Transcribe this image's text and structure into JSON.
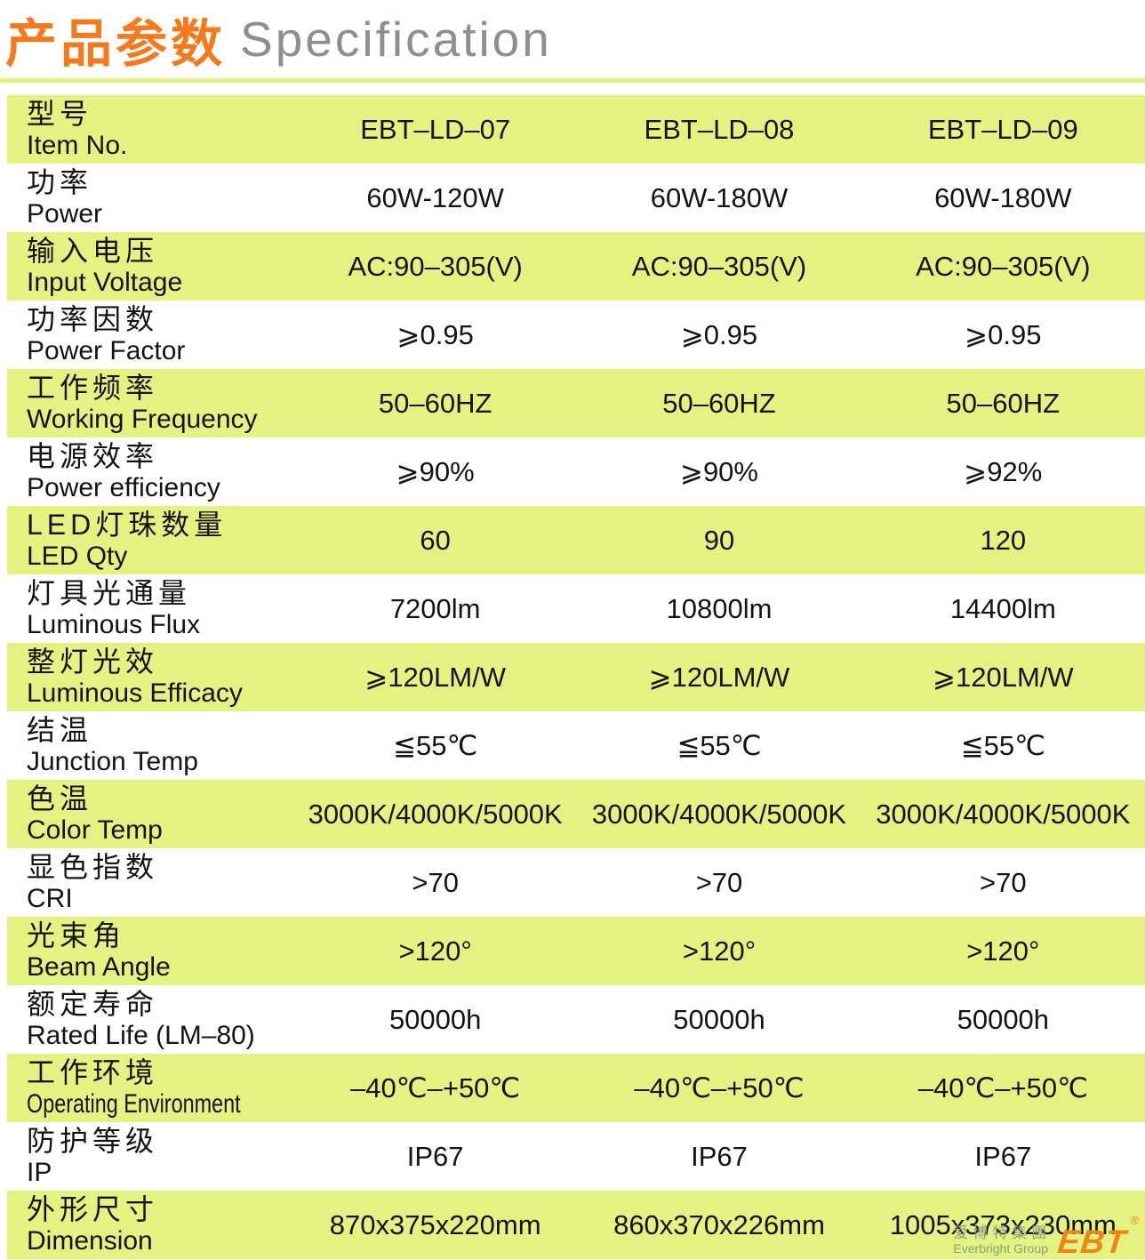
{
  "header": {
    "title_cn": "产品参数",
    "title_en": "Specification"
  },
  "table": {
    "rows": [
      {
        "cn": "型号",
        "en": "Item No.",
        "values": [
          "EBT–LD–07",
          "EBT–LD–08",
          "EBT–LD–09"
        ]
      },
      {
        "cn": "功率",
        "en": "Power",
        "values": [
          "60W-120W",
          "60W-180W",
          "60W-180W"
        ]
      },
      {
        "cn": "输入电压",
        "en": "Input Voltage",
        "values": [
          "AC:90–305(V)",
          "AC:90–305(V)",
          "AC:90–305(V)"
        ]
      },
      {
        "cn": "功率因数",
        "en": "Power Factor",
        "values": [
          "⩾0.95",
          "⩾0.95",
          "⩾0.95"
        ]
      },
      {
        "cn": "工作频率",
        "en": "Working Frequency",
        "values": [
          "50–60HZ",
          "50–60HZ",
          "50–60HZ"
        ]
      },
      {
        "cn": "电源效率",
        "en": "Power efficiency",
        "values": [
          "⩾90%",
          "⩾90%",
          "⩾92%"
        ]
      },
      {
        "cn": "LED灯珠数量",
        "en": "LED Qty",
        "values": [
          "60",
          "90",
          "120"
        ]
      },
      {
        "cn": "灯具光通量",
        "en": "Luminous Flux",
        "values": [
          "7200lm",
          "10800lm",
          "14400lm"
        ]
      },
      {
        "cn": "整灯光效",
        "en": "Luminous Efficacy",
        "values": [
          "⩾120LM/W",
          "⩾120LM/W",
          "⩾120LM/W"
        ]
      },
      {
        "cn": "结温",
        "en": "Junction Temp",
        "values": [
          "≦55℃",
          "≦55℃",
          "≦55℃"
        ]
      },
      {
        "cn": "色温",
        "en": "Color Temp",
        "values": [
          "3000K/4000K/5000K",
          "3000K/4000K/5000K",
          "3000K/4000K/5000K"
        ]
      },
      {
        "cn": "显色指数",
        "en": "CRI",
        "values": [
          ">70",
          ">70",
          ">70"
        ]
      },
      {
        "cn": "光束角",
        "en": "Beam Angle",
        "values": [
          ">120°",
          ">120°",
          ">120°"
        ]
      },
      {
        "cn": "额定寿命",
        "en": "Rated Life (LM–80)",
        "values": [
          "50000h",
          "50000h",
          "50000h"
        ]
      },
      {
        "cn": "工作环境",
        "en": "Operating Environment",
        "values": [
          "–40℃–+50℃",
          "–40℃–+50℃",
          "–40℃–+50℃"
        ]
      },
      {
        "cn": "防护等级",
        "en": "IP",
        "values": [
          "IP67",
          "IP67",
          "IP67"
        ]
      },
      {
        "cn": "外形尺寸",
        "en": "Dimension",
        "values": [
          "870x375x220mm",
          "860x370x226mm",
          "1005x373x230mm"
        ]
      }
    ]
  },
  "footer_logo": {
    "cn": "爱博特集團",
    "en": "Everbright Group",
    "mark": "EBT",
    "reg": "®"
  },
  "colors": {
    "row_green": "#e4f282",
    "title_orange": "#f5791d",
    "title_gray": "#8f8f8f",
    "logo_orange": "#ef8418",
    "logo_gray": "#8d9c84"
  }
}
